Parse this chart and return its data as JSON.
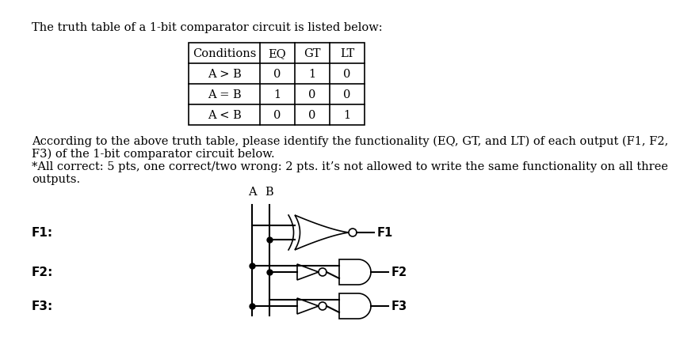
{
  "title_text": "The truth table of a 1-bit comparator circuit is listed below:",
  "table_conditions": [
    "A > B",
    "A = B",
    "A < B"
  ],
  "table_eq": [
    "0",
    "1",
    "0"
  ],
  "table_gt": [
    "1",
    "0",
    "0"
  ],
  "table_lt": [
    "0",
    "0",
    "1"
  ],
  "col_headers": [
    "Conditions",
    "EQ",
    "GT",
    "LT"
  ],
  "body_text1": "According to the above truth table, please identify the functionality (EQ, GT, and LT) of each output (F1, F2,",
  "body_text2": "F3) of the 1-bit comparator circuit below.",
  "body_text3": "*All correct: 5 pts, one correct/two wrong: 2 pts. it’s not allowed to write the same functionality on all three",
  "body_text4": "outputs.",
  "f1_label": "F1:",
  "f2_label": "F2:",
  "f3_label": "F3:",
  "f1_out": "F1",
  "f2_out": "F2",
  "f3_out": "F3",
  "input_a_label": "A",
  "input_b_label": "B",
  "bg_color": "#ffffff",
  "text_color": "#000000",
  "font_size": 10.5,
  "bold_font_size": 11
}
